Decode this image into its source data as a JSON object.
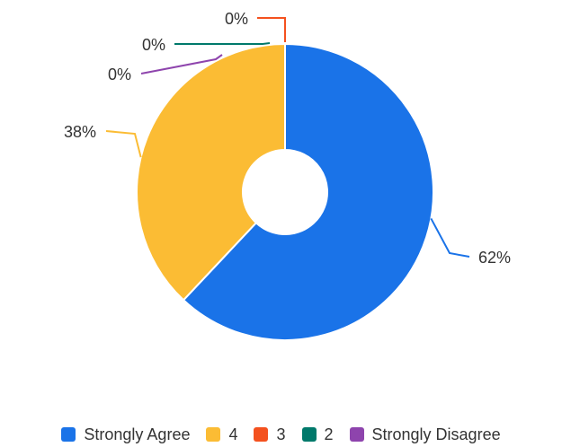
{
  "chart_data": {
    "type": "pie",
    "donut": true,
    "title": "",
    "legend_position": "bottom",
    "slices": [
      {
        "name": "Strongly Agree",
        "value": 62,
        "label": "62%",
        "color": "#1a73e8"
      },
      {
        "name": "4",
        "value": 38,
        "label": "38%",
        "color": "#fbbc34"
      },
      {
        "name": "3",
        "value": 0,
        "label": "0%",
        "color": "#f4511e"
      },
      {
        "name": "2",
        "value": 0,
        "label": "0%",
        "color": "#00796b"
      },
      {
        "name": "Strongly Disagree",
        "value": 0,
        "label": "0%",
        "color": "#8e44ad"
      }
    ]
  }
}
